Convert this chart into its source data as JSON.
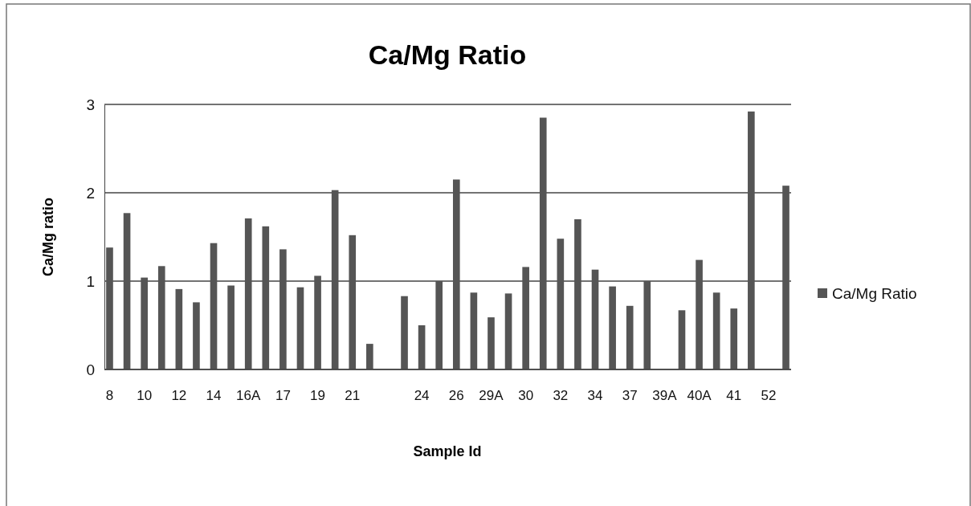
{
  "chart_data": {
    "type": "bar",
    "title": "Ca/Mg Ratio",
    "xlabel": "Sample Id",
    "ylabel": "Ca/Mg ratio",
    "categories": [
      "8",
      null,
      "10",
      null,
      "12",
      null,
      "14",
      null,
      "16A",
      null,
      "17",
      null,
      "19",
      null,
      "21",
      null,
      null,
      null,
      "24",
      null,
      "26",
      null,
      "29A",
      null,
      "30",
      null,
      "32",
      null,
      "34",
      null,
      "37",
      null,
      "39A",
      null,
      "40A",
      null,
      "41",
      null,
      "52",
      null
    ],
    "series": [
      {
        "name": "Ca/Mg Ratio",
        "color": "#555555",
        "values": [
          1.38,
          1.77,
          1.04,
          1.17,
          0.91,
          0.76,
          1.43,
          0.95,
          1.71,
          1.62,
          1.36,
          0.93,
          1.06,
          2.03,
          1.52,
          0.29,
          null,
          0.83,
          0.5,
          1.0,
          2.15,
          0.87,
          0.59,
          0.86,
          1.16,
          2.85,
          1.48,
          1.7,
          1.13,
          0.94,
          0.72,
          1.0,
          null,
          0.67,
          1.24,
          0.87,
          0.69,
          2.92,
          null,
          2.08
        ]
      }
    ],
    "ylim": [
      0,
      3
    ],
    "yticks": [
      0,
      1,
      2,
      3
    ],
    "grid": "y",
    "legend": "right"
  }
}
